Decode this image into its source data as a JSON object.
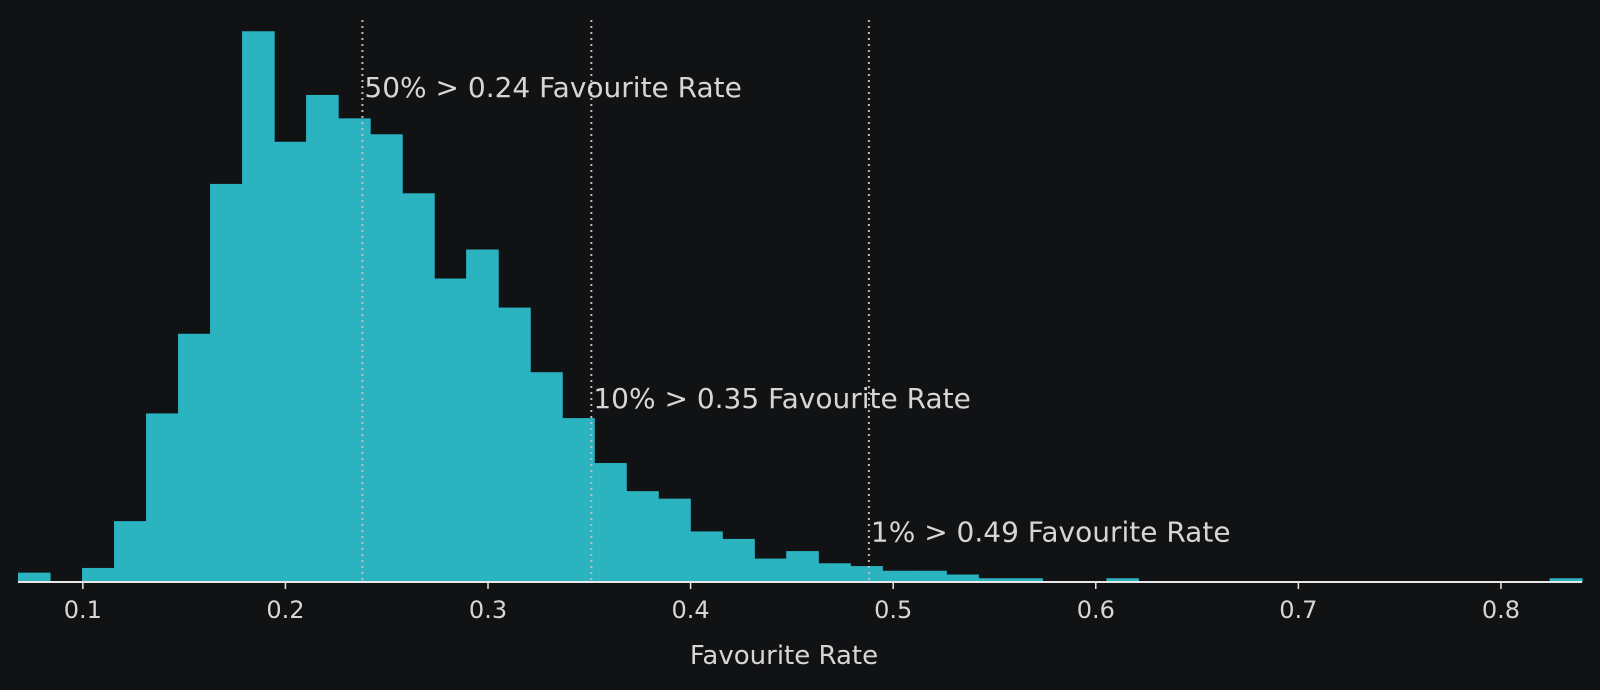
{
  "chart_data": {
    "type": "histogram",
    "title": "",
    "xlabel": "Favourite Rate",
    "ylabel": "",
    "xlim": [
      0.068,
      0.84
    ],
    "ylim": [
      0,
      6.0
    ],
    "grid": false,
    "colors": {
      "background": "#111214",
      "bar": "#2bb3c0",
      "axis": "#e6e6e6",
      "reference_line": "#bdbdbd",
      "text": "#d6d6d6"
    },
    "x_ticks": [
      {
        "value": 0.1,
        "label": "0.1"
      },
      {
        "value": 0.2,
        "label": "0.2"
      },
      {
        "value": 0.3,
        "label": "0.3"
      },
      {
        "value": 0.4,
        "label": "0.4"
      },
      {
        "value": 0.5,
        "label": "0.5"
      },
      {
        "value": 0.6,
        "label": "0.6"
      },
      {
        "value": 0.7,
        "label": "0.7"
      },
      {
        "value": 0.8,
        "label": "0.8"
      }
    ],
    "bins": [
      {
        "x0": 0.068,
        "x1": 0.0838,
        "density": 0.1
      },
      {
        "x0": 0.0838,
        "x1": 0.0996,
        "density": 0.0
      },
      {
        "x0": 0.0996,
        "x1": 0.1154,
        "density": 0.15
      },
      {
        "x0": 0.1154,
        "x1": 0.1312,
        "density": 0.65
      },
      {
        "x0": 0.1312,
        "x1": 0.147,
        "density": 1.8
      },
      {
        "x0": 0.147,
        "x1": 0.1628,
        "density": 2.65
      },
      {
        "x0": 0.1628,
        "x1": 0.1786,
        "density": 4.25
      },
      {
        "x0": 0.1786,
        "x1": 0.1944,
        "density": 5.88
      },
      {
        "x0": 0.1944,
        "x1": 0.2102,
        "density": 4.7
      },
      {
        "x0": 0.2102,
        "x1": 0.226,
        "density": 5.2
      },
      {
        "x0": 0.226,
        "x1": 0.2418,
        "density": 4.95
      },
      {
        "x0": 0.2418,
        "x1": 0.2576,
        "density": 4.78
      },
      {
        "x0": 0.2576,
        "x1": 0.2734,
        "density": 4.15
      },
      {
        "x0": 0.2734,
        "x1": 0.2892,
        "density": 3.24
      },
      {
        "x0": 0.2892,
        "x1": 0.305,
        "density": 3.55
      },
      {
        "x0": 0.305,
        "x1": 0.3208,
        "density": 2.93
      },
      {
        "x0": 0.3208,
        "x1": 0.3366,
        "density": 2.24
      },
      {
        "x0": 0.3366,
        "x1": 0.3524,
        "density": 1.75
      },
      {
        "x0": 0.3524,
        "x1": 0.3682,
        "density": 1.27
      },
      {
        "x0": 0.3682,
        "x1": 0.384,
        "density": 0.97
      },
      {
        "x0": 0.384,
        "x1": 0.3998,
        "density": 0.89
      },
      {
        "x0": 0.3998,
        "x1": 0.4156,
        "density": 0.54
      },
      {
        "x0": 0.4156,
        "x1": 0.4314,
        "density": 0.46
      },
      {
        "x0": 0.4314,
        "x1": 0.4472,
        "density": 0.25
      },
      {
        "x0": 0.4472,
        "x1": 0.463,
        "density": 0.33
      },
      {
        "x0": 0.463,
        "x1": 0.4788,
        "density": 0.2
      },
      {
        "x0": 0.4788,
        "x1": 0.4946,
        "density": 0.17
      },
      {
        "x0": 0.4946,
        "x1": 0.5104,
        "density": 0.12
      },
      {
        "x0": 0.5104,
        "x1": 0.5262,
        "density": 0.12
      },
      {
        "x0": 0.5262,
        "x1": 0.542,
        "density": 0.08
      },
      {
        "x0": 0.542,
        "x1": 0.5578,
        "density": 0.04
      },
      {
        "x0": 0.5578,
        "x1": 0.5736,
        "density": 0.04
      },
      {
        "x0": 0.5736,
        "x1": 0.5894,
        "density": 0.0
      },
      {
        "x0": 0.5894,
        "x1": 0.6052,
        "density": 0.0
      },
      {
        "x0": 0.6052,
        "x1": 0.621,
        "density": 0.04
      },
      {
        "x0": 0.824,
        "x1": 0.84,
        "density": 0.04
      }
    ],
    "reference_lines": [
      {
        "x": 0.238,
        "label": "50% > 0.24 Favourite Rate",
        "label_y": 5.18
      },
      {
        "x": 0.351,
        "label": "10% > 0.35 Favourite Rate",
        "label_y": 1.86
      },
      {
        "x": 0.488,
        "label": "1% > 0.49 Favourite Rate",
        "label_y": 0.43
      }
    ]
  }
}
